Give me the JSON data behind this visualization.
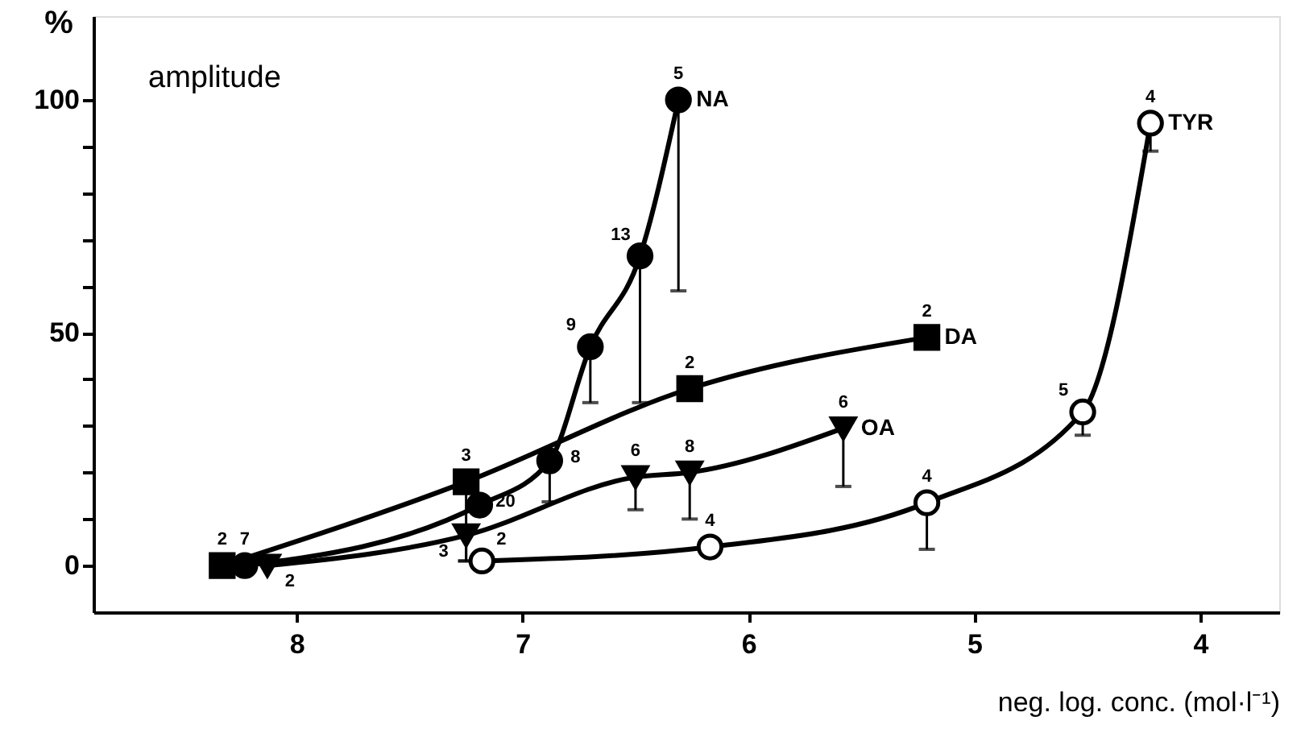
{
  "chart_data": {
    "type": "line",
    "title": "amplitude",
    "ylabel": "%",
    "xlabel": "neg. log. conc. (mol·l⁻¹)",
    "xlim": [
      8.9,
      3.65
    ],
    "xticks": [
      8,
      7,
      6,
      5,
      4
    ],
    "ylim": [
      -10,
      118
    ],
    "yticks": [
      0,
      {
        "value": 10,
        "label": null
      },
      {
        "value": 20,
        "label": null
      },
      {
        "value": 30,
        "label": null
      },
      {
        "value": 40,
        "label": null
      },
      50,
      {
        "value": 60,
        "label": null
      },
      {
        "value": 70,
        "label": null
      },
      {
        "value": 80,
        "label": null
      },
      {
        "value": 90,
        "label": null
      },
      100
    ],
    "line_style": "solid",
    "series": [
      {
        "name": "NA",
        "color": "#000000",
        "marker": "circle",
        "x": [
          8.23,
          7.19,
          6.88,
          6.7,
          6.48,
          6.31
        ],
        "values": [
          0,
          13,
          22.5,
          47,
          66.5,
          100
        ],
        "errors": [
          null,
          null,
          [
            13.7,
            22.5
          ],
          [
            35,
            47
          ],
          [
            35,
            66.5
          ],
          [
            59,
            100
          ]
        ]
      },
      {
        "name": "DA",
        "color": "#000000",
        "marker": "square",
        "x": [
          8.33,
          7.25,
          6.26,
          5.21
        ],
        "values": [
          0,
          18,
          38,
          49
        ],
        "errors": [
          null,
          [
            1,
            18
          ],
          null,
          null
        ]
      },
      {
        "name": "OA",
        "color": "#000000",
        "marker": "triangle",
        "x": [
          8.13,
          7.25,
          6.5,
          6.26,
          5.58
        ],
        "values": [
          0,
          6.5,
          19,
          20,
          29.5
        ],
        "errors": [
          null,
          [
            1,
            6.5
          ],
          [
            12,
            19
          ],
          [
            10,
            20
          ],
          [
            17,
            29.5
          ]
        ]
      },
      {
        "name": "TYR",
        "color": "#000000",
        "colors": [
          "#ffffff",
          "#ffffff",
          "#ffffff",
          "#ffffff",
          "#ffffff"
        ],
        "marker": "circle",
        "x": [
          7.18,
          6.17,
          5.21,
          4.52,
          4.22
        ],
        "values": [
          1,
          4,
          13.5,
          33,
          95
        ],
        "errors": [
          null,
          null,
          [
            3.5,
            13.5
          ],
          [
            28,
            33
          ],
          [
            89,
            95
          ]
        ]
      }
    ],
    "annotations": [
      {
        "text": "2",
        "x": 8.33,
        "y": 0
      },
      {
        "text": "7",
        "x": 8.23,
        "y": 0
      },
      {
        "text": "2",
        "x": 8.13,
        "y": 0
      },
      {
        "text": "20",
        "x": 7.19,
        "y": 13
      },
      {
        "text": "8",
        "x": 6.88,
        "y": 22.5
      },
      {
        "text": "9",
        "x": 6.7,
        "y": 47
      },
      {
        "text": "13",
        "x": 6.48,
        "y": 66.5
      },
      {
        "text": "5",
        "x": 6.31,
        "y": 100
      },
      {
        "text": "3",
        "x": 7.25,
        "y": 18
      },
      {
        "text": "2",
        "x": 6.26,
        "y": 38
      },
      {
        "text": "2",
        "x": 5.21,
        "y": 49
      },
      {
        "text": "3",
        "x": 7.25,
        "y": 6.5
      },
      {
        "text": "6",
        "x": 6.5,
        "y": 19
      },
      {
        "text": "8",
        "x": 6.26,
        "y": 20
      },
      {
        "text": "6",
        "x": 5.58,
        "y": 29.5
      },
      {
        "text": "2",
        "x": 7.18,
        "y": 1
      },
      {
        "text": "4",
        "x": 6.17,
        "y": 4
      },
      {
        "text": "4",
        "x": 5.21,
        "y": 13.5
      },
      {
        "text": "5",
        "x": 4.52,
        "y": 33
      },
      {
        "text": "4",
        "x": 4.22,
        "y": 95
      }
    ]
  }
}
